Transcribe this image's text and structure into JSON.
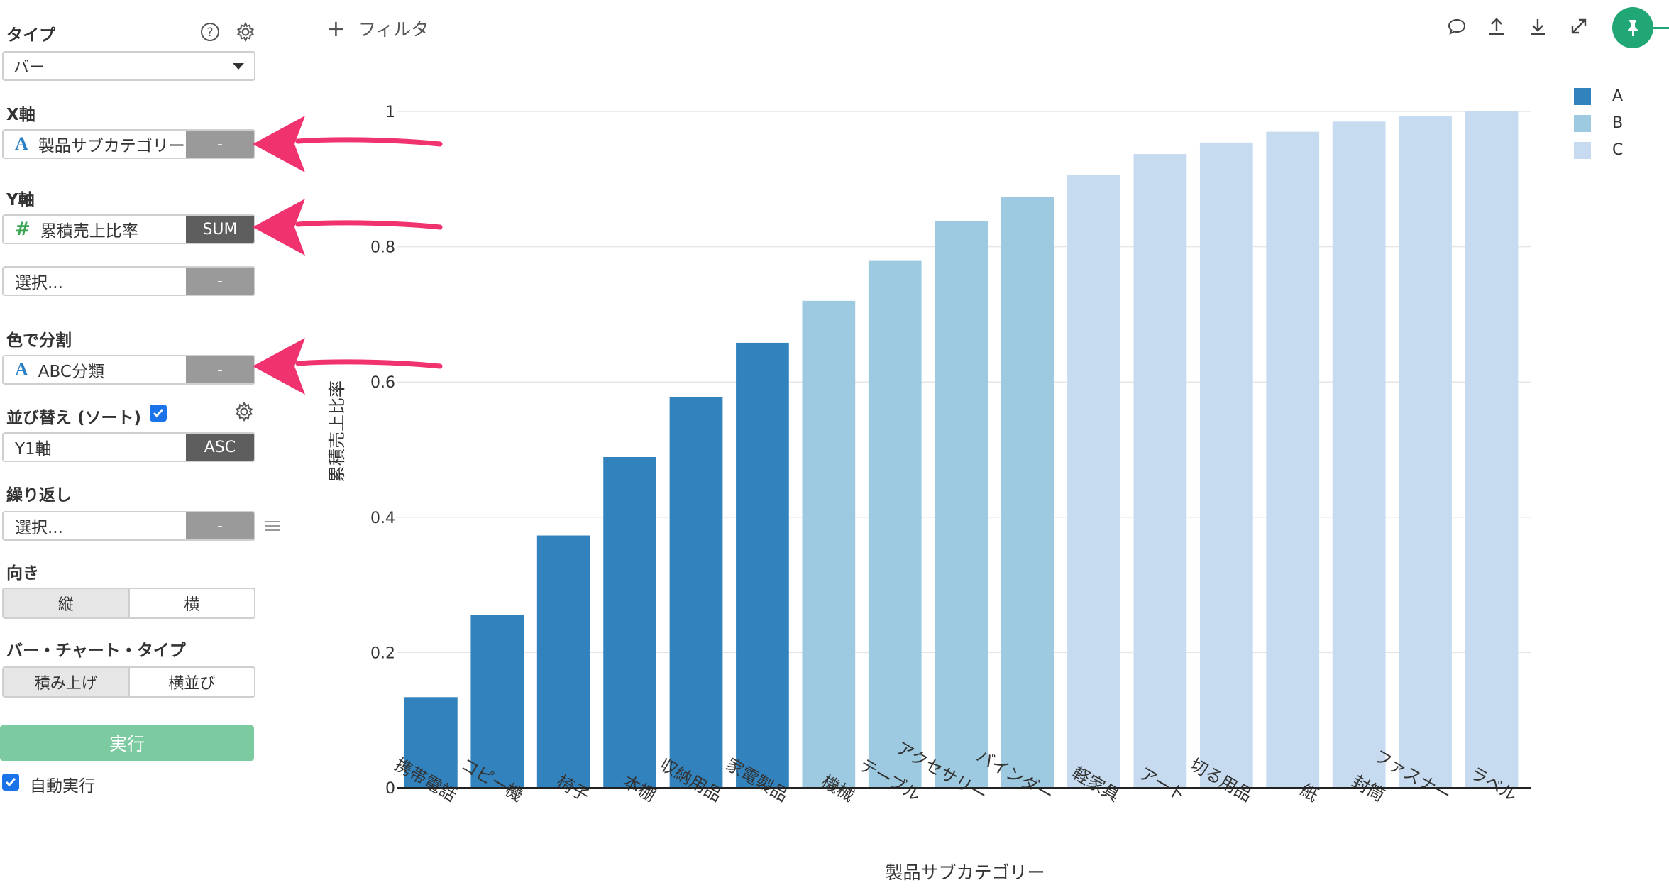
{
  "sidebar": {
    "type_label": "タイプ",
    "type_value": "バー",
    "x_axis_label": "X軸",
    "x_field": "製品サブカテゴリー",
    "x_btn": "-",
    "y_axis_label": "Y軸",
    "y_field": "累積売上比率",
    "y_btn": "SUM",
    "y2_placeholder": "選択...",
    "y2_btn": "-",
    "color_label": "色で分割",
    "color_field": "ABC分類",
    "color_btn": "-",
    "sort_label": "並び替え (ソート)",
    "sort_field": "Y1軸",
    "sort_btn": "ASC",
    "repeat_label": "繰り返し",
    "repeat_placeholder": "選択...",
    "repeat_btn": "-",
    "orientation_label": "向き",
    "orientation_options": [
      "縦",
      "横"
    ],
    "bar_type_label": "バー・チャート・タイプ",
    "bar_type_options": [
      "積み上げ",
      "横並び"
    ],
    "run_label": "実行",
    "auto_run_label": "自動実行"
  },
  "toolbar": {
    "filter_label": "フィルタ"
  },
  "colors": {
    "A": "#3182bd",
    "B": "#9ecae1",
    "C": "#c6dbef",
    "arrow": "#f0326e",
    "pin": "#21a675"
  },
  "chart_data": {
    "type": "bar",
    "xlabel": "製品サブカテゴリー",
    "ylabel": "累積売上比率",
    "ylim": [
      0,
      1
    ],
    "yticks": [
      0,
      0.2,
      0.4,
      0.6,
      0.8,
      1
    ],
    "ytick_labels": [
      "0",
      "0.2",
      "0.4",
      "0.6",
      "0.8",
      "1"
    ],
    "grid": true,
    "legend_position": "top-right",
    "legend": [
      "A",
      "B",
      "C"
    ],
    "categories": [
      "携帯電話",
      "コピー機",
      "椅子",
      "本棚",
      "収納用品",
      "家電製品",
      "機械",
      "テーブル",
      "アクセサリー",
      "バインダー",
      "軽家具",
      "アート",
      "切る用品",
      "紙",
      "封筒",
      "ファスナー",
      "ラベル"
    ],
    "values": [
      0.134,
      0.255,
      0.373,
      0.489,
      0.578,
      0.658,
      0.72,
      0.779,
      0.838,
      0.874,
      0.906,
      0.937,
      0.954,
      0.97,
      0.985,
      0.993,
      1.0
    ],
    "groups": [
      "A",
      "A",
      "A",
      "A",
      "A",
      "A",
      "B",
      "B",
      "B",
      "B",
      "C",
      "C",
      "C",
      "C",
      "C",
      "C",
      "C"
    ]
  }
}
